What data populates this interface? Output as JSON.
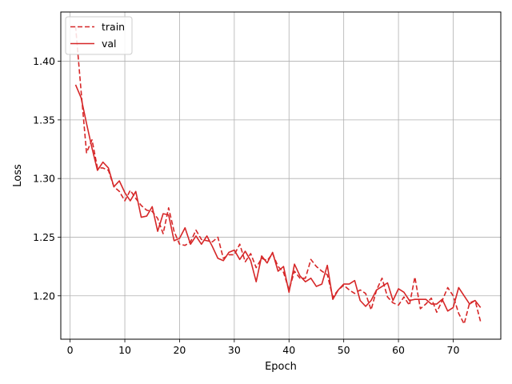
{
  "chart_data": {
    "type": "line",
    "title": "",
    "xlabel": "Epoch",
    "ylabel": "Loss",
    "xlim": [
      -1.7,
      78.7
    ],
    "ylim": [
      1.163,
      1.442
    ],
    "xticks": [
      0,
      10,
      20,
      30,
      40,
      50,
      60,
      70
    ],
    "yticks": [
      1.2,
      1.25,
      1.3,
      1.35,
      1.4
    ],
    "grid": true,
    "legend": {
      "position": "top-left",
      "entries": [
        "train",
        "val"
      ]
    },
    "x": [
      1,
      2,
      3,
      4,
      5,
      6,
      7,
      8,
      9,
      10,
      11,
      12,
      13,
      14,
      15,
      16,
      17,
      18,
      19,
      20,
      21,
      22,
      23,
      24,
      25,
      26,
      27,
      28,
      29,
      30,
      31,
      32,
      33,
      34,
      35,
      36,
      37,
      38,
      39,
      40,
      41,
      42,
      43,
      44,
      45,
      46,
      47,
      48,
      49,
      50,
      51,
      52,
      53,
      54,
      55,
      56,
      57,
      58,
      59,
      60,
      61,
      62,
      63,
      64,
      65,
      66,
      67,
      68,
      69,
      70,
      71,
      72,
      73,
      74,
      75
    ],
    "series": [
      {
        "name": "train",
        "color": "#d62728",
        "style": "dashed",
        "values": [
          1.43,
          1.375,
          1.322,
          1.333,
          1.309,
          1.309,
          1.307,
          1.293,
          1.289,
          1.281,
          1.29,
          1.283,
          1.277,
          1.273,
          1.272,
          1.266,
          1.253,
          1.275,
          1.255,
          1.244,
          1.243,
          1.246,
          1.256,
          1.248,
          1.247,
          1.246,
          1.25,
          1.232,
          1.235,
          1.235,
          1.244,
          1.229,
          1.236,
          1.224,
          1.232,
          1.23,
          1.236,
          1.225,
          1.22,
          1.205,
          1.221,
          1.215,
          1.215,
          1.231,
          1.225,
          1.221,
          1.218,
          1.199,
          1.205,
          1.209,
          1.205,
          1.202,
          1.205,
          1.202,
          1.188,
          1.205,
          1.215,
          1.199,
          1.194,
          1.192,
          1.199,
          1.192,
          1.216,
          1.189,
          1.193,
          1.198,
          1.186,
          1.196,
          1.207,
          1.2,
          1.185,
          1.176,
          1.194,
          1.196,
          1.178
        ]
      },
      {
        "name": "val",
        "color": "#d62728",
        "style": "solid",
        "values": [
          1.38,
          1.369,
          1.347,
          1.326,
          1.307,
          1.314,
          1.309,
          1.293,
          1.298,
          1.288,
          1.281,
          1.289,
          1.267,
          1.268,
          1.276,
          1.255,
          1.27,
          1.269,
          1.247,
          1.249,
          1.258,
          1.244,
          1.251,
          1.244,
          1.251,
          1.242,
          1.232,
          1.23,
          1.237,
          1.239,
          1.231,
          1.238,
          1.23,
          1.212,
          1.234,
          1.228,
          1.237,
          1.221,
          1.225,
          1.203,
          1.227,
          1.217,
          1.212,
          1.215,
          1.208,
          1.21,
          1.226,
          1.197,
          1.205,
          1.21,
          1.21,
          1.213,
          1.196,
          1.191,
          1.196,
          1.205,
          1.208,
          1.211,
          1.196,
          1.206,
          1.203,
          1.196,
          1.197,
          1.197,
          1.197,
          1.193,
          1.193,
          1.197,
          1.187,
          1.19,
          1.207,
          1.2,
          1.193,
          1.196,
          1.19
        ]
      }
    ]
  }
}
